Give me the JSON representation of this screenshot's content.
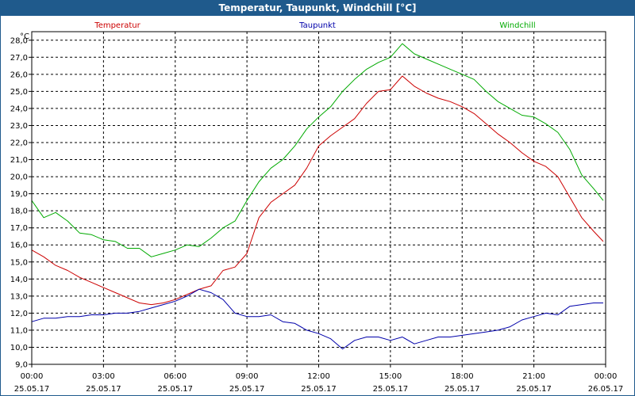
{
  "window": {
    "title": "Temperatur, Taupunkt, Windchill [°C]"
  },
  "chart_data": {
    "type": "line",
    "title": "Temperatur, Taupunkt, Windchill [°C]",
    "y_unit": "°C",
    "ylim": [
      9.0,
      28.5
    ],
    "y_ticks": [
      "9,0",
      "10,0",
      "11,0",
      "12,0",
      "13,0",
      "14,0",
      "15,0",
      "16,0",
      "17,0",
      "18,0",
      "19,0",
      "20,0",
      "21,0",
      "22,0",
      "23,0",
      "24,0",
      "25,0",
      "26,0",
      "27,0",
      "28,0"
    ],
    "x_ticks": [
      {
        "time": "00:00",
        "date": "25.05.17"
      },
      {
        "time": "03:00",
        "date": "25.05.17"
      },
      {
        "time": "06:00",
        "date": "25.05.17"
      },
      {
        "time": "09:00",
        "date": "25.05.17"
      },
      {
        "time": "12:00",
        "date": "25.05.17"
      },
      {
        "time": "15:00",
        "date": "25.05.17"
      },
      {
        "time": "18:00",
        "date": "25.05.17"
      },
      {
        "time": "21:00",
        "date": "25.05.17"
      },
      {
        "time": "00:00",
        "date": "26.05.17"
      }
    ],
    "x_range_hours": [
      0,
      24
    ],
    "grid": true,
    "series": [
      {
        "name": "Temperatur",
        "color": "#cc0000",
        "x": [
          0,
          0.5,
          1,
          1.5,
          2,
          2.5,
          3,
          3.5,
          4,
          4.5,
          5,
          5.5,
          6,
          6.5,
          7,
          7.5,
          8,
          8.5,
          9,
          9.5,
          10,
          10.5,
          11,
          11.5,
          12,
          12.5,
          13,
          13.5,
          14,
          14.5,
          15,
          15.5,
          16,
          16.5,
          17,
          17.5,
          18,
          18.5,
          19,
          19.5,
          20,
          20.5,
          21,
          21.5,
          22,
          22.5,
          23,
          23.5,
          23.9
        ],
        "values": [
          15.7,
          15.3,
          14.8,
          14.5,
          14.1,
          13.8,
          13.5,
          13.2,
          12.9,
          12.6,
          12.5,
          12.6,
          12.8,
          13.1,
          13.4,
          13.6,
          14.5,
          14.7,
          15.5,
          17.6,
          18.5,
          19.0,
          19.5,
          20.5,
          21.8,
          22.4,
          22.9,
          23.4,
          24.3,
          25.0,
          25.1,
          25.9,
          25.3,
          24.9,
          24.6,
          24.4,
          24.1,
          23.7,
          23.1,
          22.5,
          22.0,
          21.4,
          20.9,
          20.6,
          20.0,
          18.8,
          17.6,
          16.8,
          16.2
        ]
      },
      {
        "name": "Taupunkt",
        "color": "#0000aa",
        "x": [
          0,
          0.5,
          1,
          1.5,
          2,
          2.5,
          3,
          3.5,
          4,
          4.5,
          5,
          5.5,
          6,
          6.5,
          7,
          7.5,
          8,
          8.5,
          9,
          9.5,
          10,
          10.5,
          11,
          11.5,
          12,
          12.5,
          13,
          13.5,
          14,
          14.5,
          15,
          15.5,
          16,
          16.5,
          17,
          17.5,
          18,
          18.5,
          19,
          19.5,
          20,
          20.5,
          21,
          21.5,
          22,
          22.5,
          23,
          23.5,
          23.9
        ],
        "values": [
          11.5,
          11.7,
          11.7,
          11.8,
          11.8,
          11.9,
          11.9,
          12.0,
          12.0,
          12.1,
          12.3,
          12.5,
          12.7,
          13.0,
          13.4,
          13.2,
          12.8,
          12.0,
          11.8,
          11.8,
          11.9,
          11.5,
          11.4,
          11.0,
          10.8,
          10.5,
          9.9,
          10.4,
          10.6,
          10.6,
          10.4,
          10.6,
          10.2,
          10.4,
          10.6,
          10.6,
          10.7,
          10.8,
          10.9,
          11.0,
          11.2,
          11.6,
          11.8,
          12.0,
          11.9,
          12.4,
          12.5,
          12.6,
          12.6
        ]
      },
      {
        "name": "Windchill",
        "color": "#00aa00",
        "x": [
          0,
          0.5,
          1,
          1.5,
          2,
          2.5,
          3,
          3.5,
          4,
          4.5,
          5,
          5.5,
          6,
          6.5,
          7,
          7.5,
          8,
          8.5,
          9,
          9.5,
          10,
          10.5,
          11,
          11.5,
          12,
          12.5,
          13,
          13.5,
          14,
          14.5,
          15,
          15.5,
          16,
          16.5,
          17,
          17.5,
          18,
          18.5,
          19,
          19.5,
          20,
          20.5,
          21,
          21.5,
          22,
          22.5,
          23,
          23.5,
          23.9
        ],
        "values": [
          18.6,
          17.6,
          17.9,
          17.4,
          16.7,
          16.6,
          16.3,
          16.2,
          15.8,
          15.8,
          15.3,
          15.5,
          15.7,
          16.0,
          15.9,
          16.4,
          17.0,
          17.4,
          18.6,
          19.7,
          20.5,
          21.0,
          21.8,
          22.8,
          23.5,
          24.1,
          25.0,
          25.7,
          26.3,
          26.7,
          27.0,
          27.8,
          27.2,
          26.9,
          26.6,
          26.3,
          26.0,
          25.7,
          25.0,
          24.4,
          24.0,
          23.6,
          23.5,
          23.1,
          22.6,
          21.6,
          20.1,
          19.3,
          18.6
        ]
      }
    ]
  }
}
